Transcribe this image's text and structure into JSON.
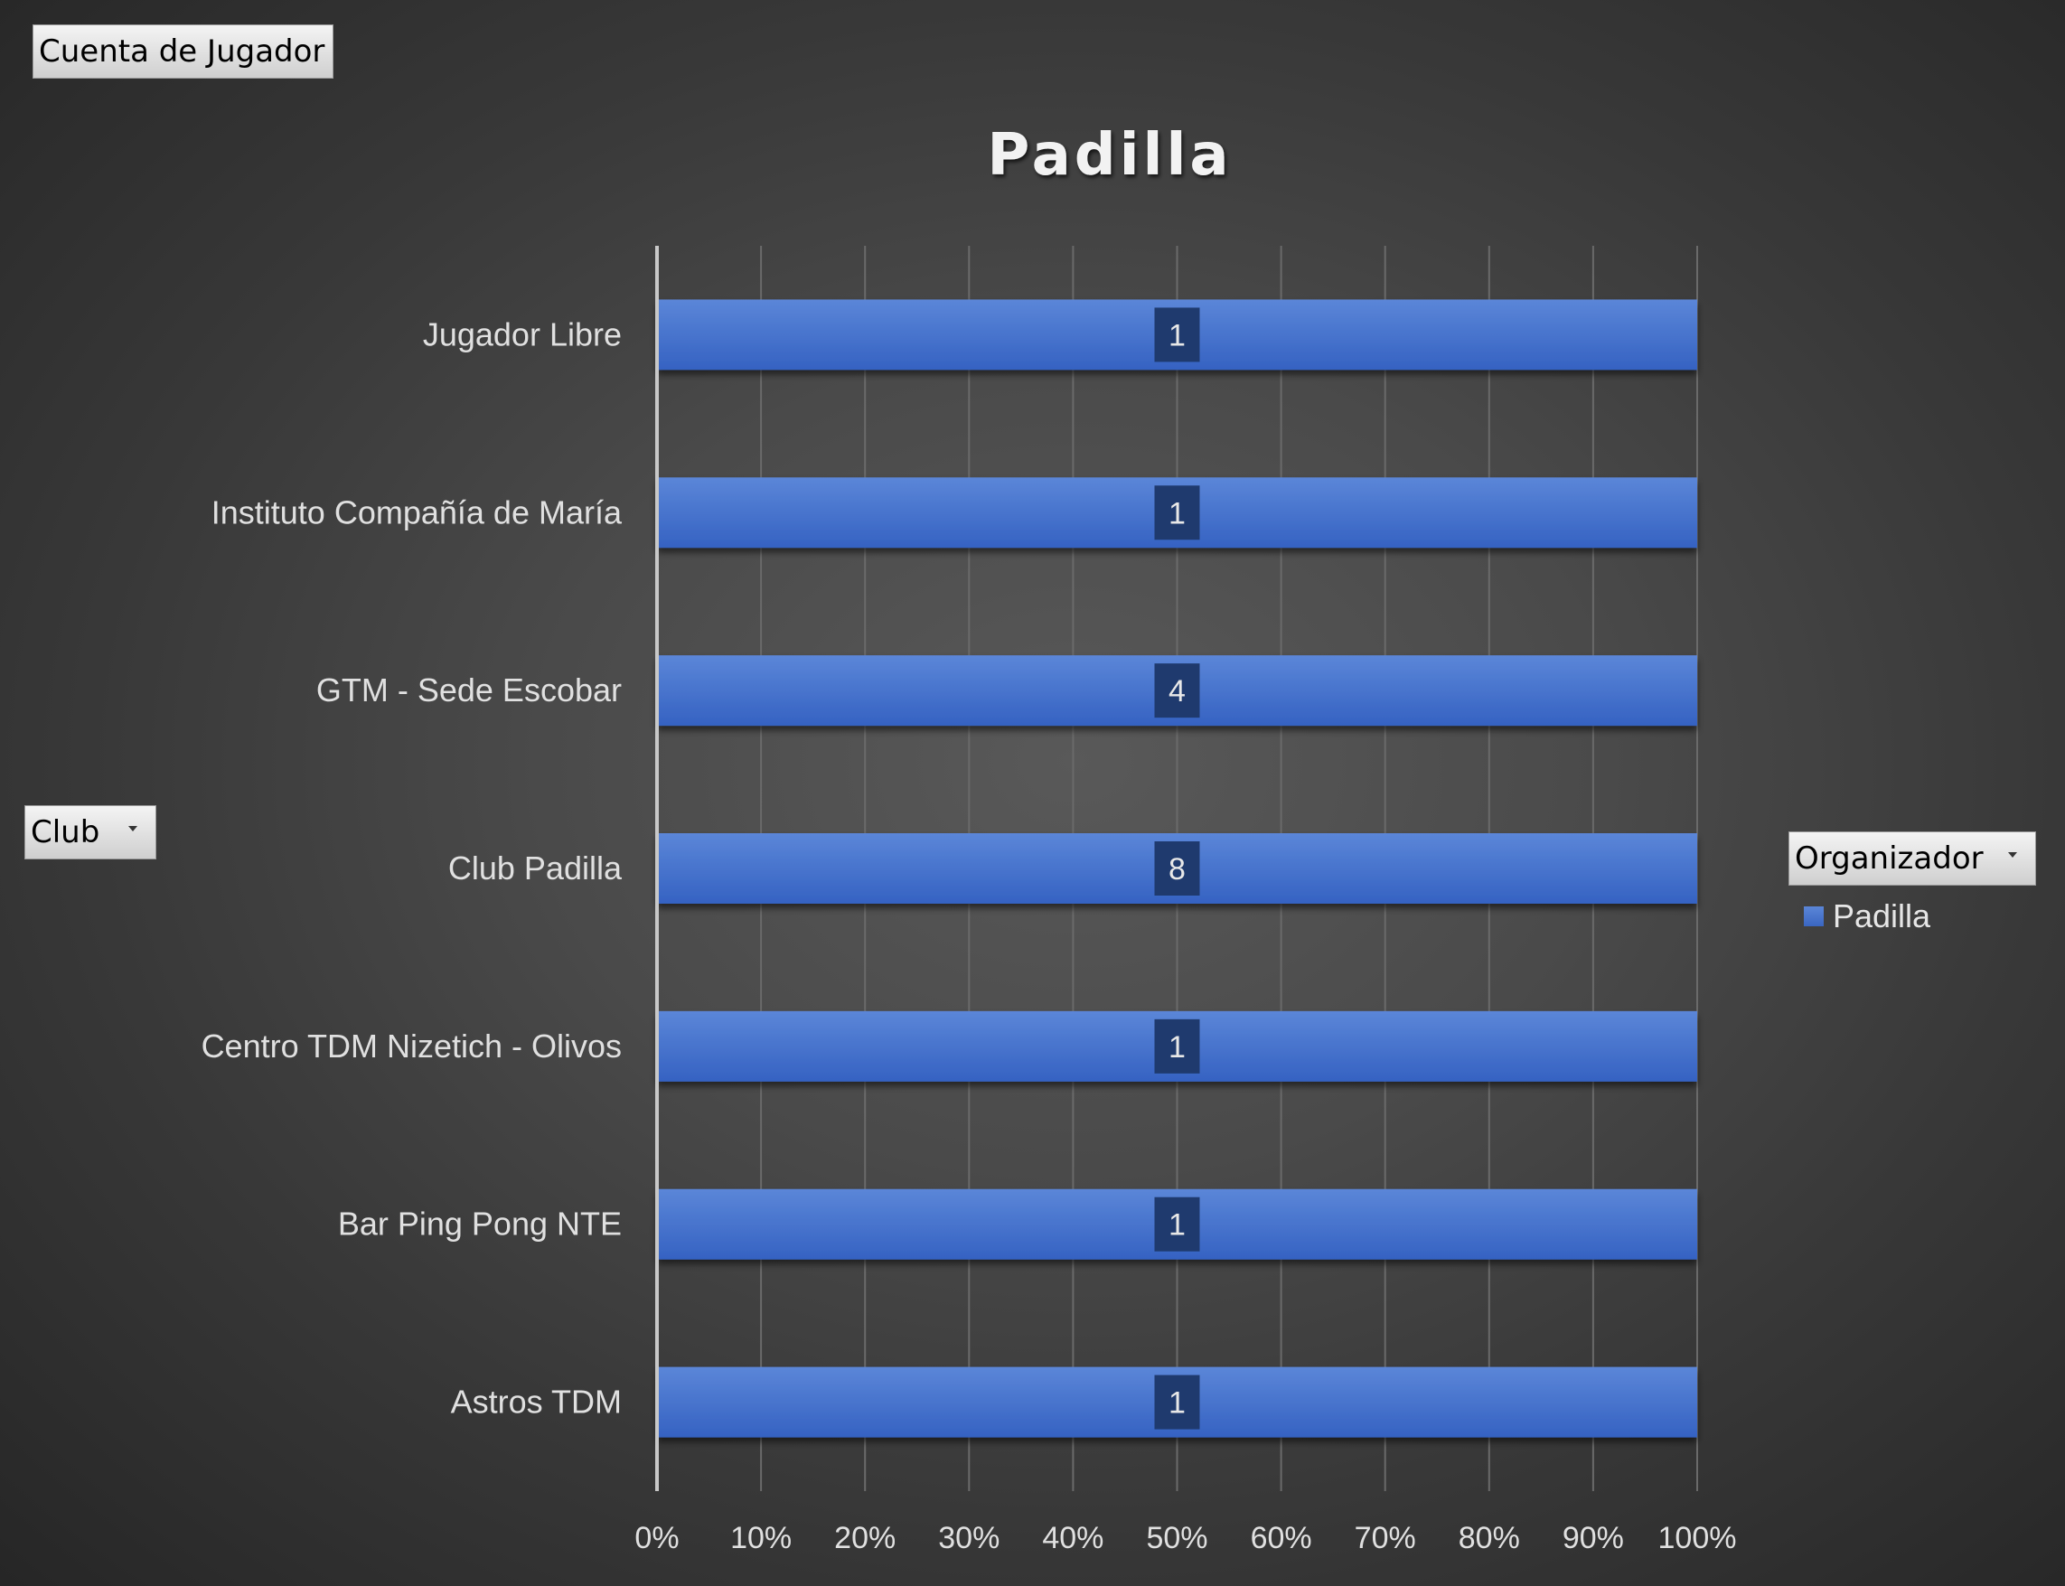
{
  "pivot_fields": {
    "value_field": "Cuenta de Jugador",
    "row_field": "Club",
    "column_field": "Organizador"
  },
  "colors": {
    "bar_top": "#5b86d8",
    "bar_bottom": "#3562c2",
    "label_box": "#1f3a6e",
    "text": "#e0e0e0",
    "grid": "#6a6a6a"
  },
  "chart_data": {
    "type": "bar",
    "orientation": "horizontal",
    "stacking": "percent",
    "title": "Padilla",
    "categories": [
      "Jugador Libre",
      "Instituto Compañía de María",
      "GTM - Sede Escobar",
      "Club Padilla",
      "Centro TDM Nizetich - Olivos",
      "Bar Ping Pong NTE",
      "Astros TDM"
    ],
    "series": [
      {
        "name": "Padilla",
        "values": [
          1,
          1,
          4,
          8,
          1,
          1,
          1
        ]
      }
    ],
    "xlim": [
      0,
      100
    ],
    "x_ticks": [
      "0%",
      "10%",
      "20%",
      "30%",
      "40%",
      "50%",
      "60%",
      "70%",
      "80%",
      "90%",
      "100%"
    ],
    "grid": true,
    "legend": "right"
  }
}
